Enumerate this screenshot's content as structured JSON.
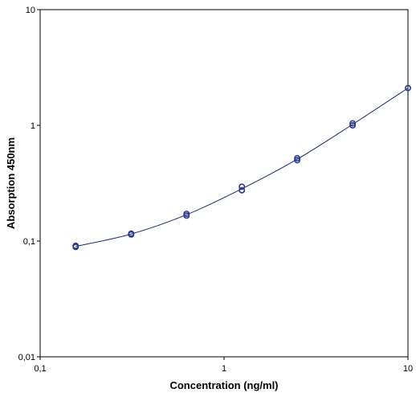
{
  "chart_data": {
    "type": "scatter",
    "title": "",
    "xlabel": "Concentration (ng/ml)",
    "ylabel": "Absorption 450nm",
    "xscale": "log",
    "yscale": "log",
    "xlim": [
      0.1,
      10
    ],
    "ylim": [
      0.01,
      10
    ],
    "grid": false,
    "x_ticks": [
      {
        "value": 0.1,
        "label": "0,1"
      },
      {
        "value": 1,
        "label": "1"
      },
      {
        "value": 10,
        "label": "10"
      }
    ],
    "y_ticks": [
      {
        "value": 0.01,
        "label": "0,01"
      },
      {
        "value": 0.1,
        "label": "0,1"
      },
      {
        "value": 1,
        "label": "1"
      },
      {
        "value": 10,
        "label": "10"
      }
    ],
    "series": [
      {
        "marker": "open-circle",
        "color": "#2b3a8c",
        "points": [
          {
            "x": 0.156,
            "y": 0.089
          },
          {
            "x": 0.156,
            "y": 0.091
          },
          {
            "x": 0.3125,
            "y": 0.114
          },
          {
            "x": 0.3125,
            "y": 0.116
          },
          {
            "x": 0.625,
            "y": 0.166
          },
          {
            "x": 0.625,
            "y": 0.172
          },
          {
            "x": 1.25,
            "y": 0.275
          },
          {
            "x": 1.25,
            "y": 0.295
          },
          {
            "x": 2.5,
            "y": 0.5
          },
          {
            "x": 2.5,
            "y": 0.52
          },
          {
            "x": 5,
            "y": 1.0
          },
          {
            "x": 5,
            "y": 1.04
          },
          {
            "x": 10,
            "y": 2.1
          }
        ]
      }
    ],
    "fit_curve": {
      "color": "#1a2a6c",
      "x": [
        0.156,
        0.3125,
        0.625,
        1.25,
        2.5,
        5,
        10
      ],
      "y": [
        0.09,
        0.115,
        0.169,
        0.283,
        0.51,
        1.02,
        2.1
      ]
    }
  }
}
